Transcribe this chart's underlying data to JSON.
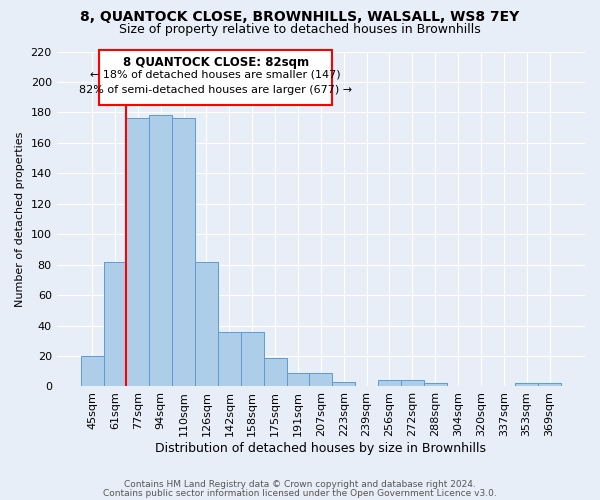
{
  "title": "8, QUANTOCK CLOSE, BROWNHILLS, WALSALL, WS8 7EY",
  "subtitle": "Size of property relative to detached houses in Brownhills",
  "xlabel": "Distribution of detached houses by size in Brownhills",
  "ylabel": "Number of detached properties",
  "bar_labels": [
    "45sqm",
    "61sqm",
    "77sqm",
    "94sqm",
    "110sqm",
    "126sqm",
    "142sqm",
    "158sqm",
    "175sqm",
    "191sqm",
    "207sqm",
    "223sqm",
    "239sqm",
    "256sqm",
    "272sqm",
    "288sqm",
    "304sqm",
    "320sqm",
    "337sqm",
    "353sqm",
    "369sqm"
  ],
  "bar_values": [
    20,
    82,
    176,
    178,
    176,
    82,
    36,
    36,
    19,
    9,
    9,
    3,
    0,
    4,
    4,
    2,
    0,
    0,
    0,
    2,
    2
  ],
  "bar_color": "#aecde8",
  "bar_edge_color": "#5b9bd5",
  "background_color": "#e8eef7",
  "grid_color": "#ffffff",
  "ylim_max": 220,
  "yticks": [
    0,
    20,
    40,
    60,
    80,
    100,
    120,
    140,
    160,
    180,
    200,
    220
  ],
  "red_line_index": 2,
  "annotation_title": "8 QUANTOCK CLOSE: 82sqm",
  "annotation_line1": "← 18% of detached houses are smaller (147)",
  "annotation_line2": "82% of semi-detached houses are larger (677) →",
  "footer1": "Contains HM Land Registry data © Crown copyright and database right 2024.",
  "footer2": "Contains public sector information licensed under the Open Government Licence v3.0.",
  "title_fontsize": 10,
  "subtitle_fontsize": 9,
  "xlabel_fontsize": 9,
  "ylabel_fontsize": 8,
  "tick_fontsize": 8,
  "footer_fontsize": 6.5,
  "ann_title_fontsize": 8.5,
  "ann_text_fontsize": 8
}
